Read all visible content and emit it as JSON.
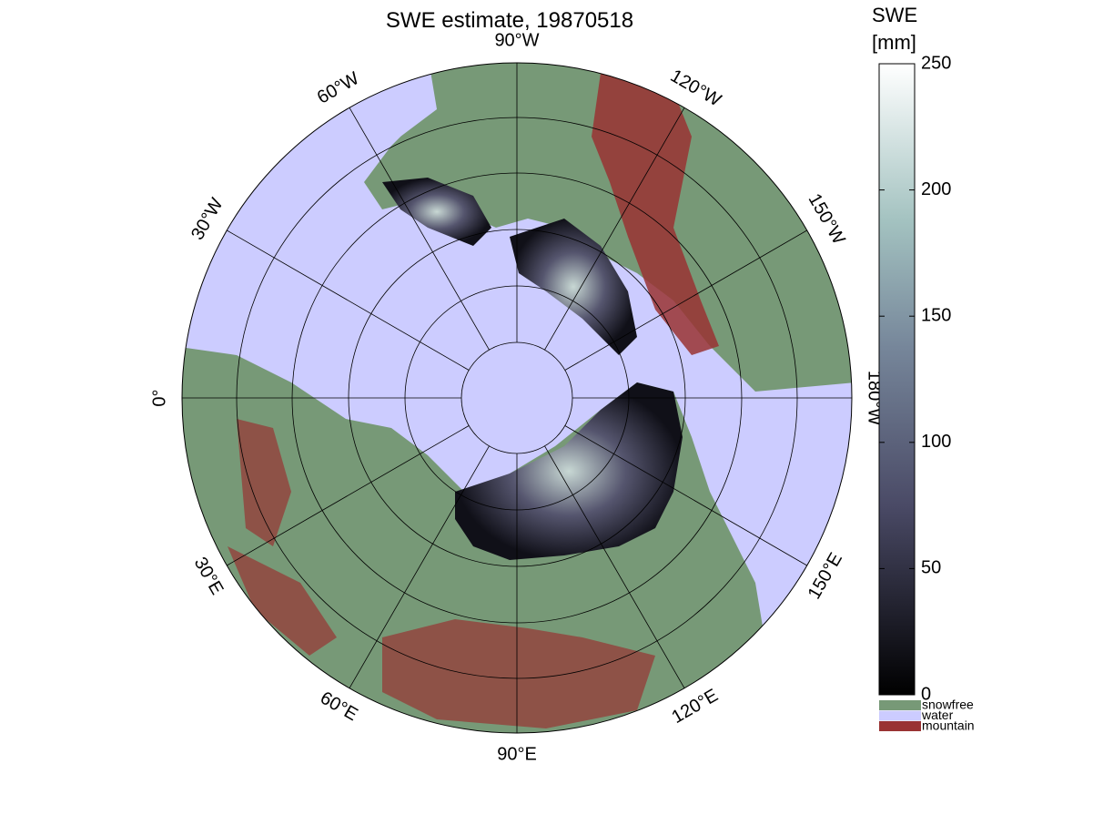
{
  "title": "SWE estimate, 19870518",
  "meridian_labels": [
    "90°W",
    "120°W",
    "150°W",
    "180°W",
    "150°E",
    "120°E",
    "90°E",
    "60°E",
    "30°E",
    "0°",
    "30°W",
    "60°W"
  ],
  "colorbar": {
    "title": [
      "SWE",
      "[mm]"
    ],
    "lim": [
      0,
      250
    ],
    "ticks": [
      0,
      50,
      100,
      150,
      200,
      250
    ]
  },
  "legend": [
    {
      "name": "snowfree",
      "color": "#779977"
    },
    {
      "name": "water",
      "color": "#ccccff"
    },
    {
      "name": "mountain",
      "color": "#993333"
    }
  ]
}
